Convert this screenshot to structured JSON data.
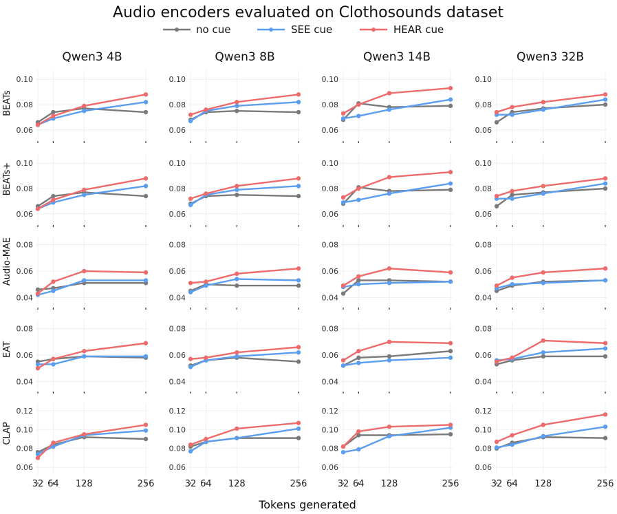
{
  "chart_data": {
    "type": "line",
    "title": "Audio encoders evaluated on Clothosounds dataset",
    "xlabel": "Tokens generated",
    "x": [
      32,
      64,
      128,
      256
    ],
    "x_tick_labels": [
      "32",
      "64",
      "128",
      "256"
    ],
    "columns": [
      "Qwen3 4B",
      "Qwen3 8B",
      "Qwen3 14B",
      "Qwen3 32B"
    ],
    "rows": [
      "BEATs",
      "BEATs+",
      "Audio-MAE",
      "EAT",
      "CLAP"
    ],
    "legend_position": "top-center",
    "series_colors": {
      "no cue": "#7a7a7a",
      "SEE cue": "#5b9ef0",
      "HEAR cue": "#ee6b6b"
    },
    "legend": [
      "no cue",
      "SEE cue",
      "HEAR cue"
    ],
    "panels": [
      {
        "row": "BEATs",
        "col": "Qwen3 4B",
        "ylim": [
          0.055,
          0.105
        ],
        "yticks": [
          0.06,
          0.08,
          0.1
        ],
        "ytick_labels": [
          "0.06",
          "0.08",
          "0.10"
        ],
        "series": [
          {
            "name": "no cue",
            "values": [
              0.066,
              0.074,
              0.077,
              0.074
            ]
          },
          {
            "name": "SEE cue",
            "values": [
              0.064,
              0.069,
              0.075,
              0.082
            ]
          },
          {
            "name": "HEAR cue",
            "values": [
              0.064,
              0.071,
              0.079,
              0.088
            ]
          }
        ]
      },
      {
        "row": "BEATs",
        "col": "Qwen3 8B",
        "ylim": [
          0.055,
          0.105
        ],
        "yticks": [
          0.06,
          0.08,
          0.1
        ],
        "ytick_labels": [
          "0.06",
          "0.08",
          "0.10"
        ],
        "series": [
          {
            "name": "no cue",
            "values": [
              0.068,
              0.074,
              0.075,
              0.074
            ]
          },
          {
            "name": "SEE cue",
            "values": [
              0.067,
              0.075,
              0.079,
              0.082
            ]
          },
          {
            "name": "HEAR cue",
            "values": [
              0.072,
              0.076,
              0.082,
              0.088
            ]
          }
        ]
      },
      {
        "row": "BEATs",
        "col": "Qwen3 14B",
        "ylim": [
          0.055,
          0.105
        ],
        "yticks": [
          0.06,
          0.08,
          0.1
        ],
        "ytick_labels": [
          "0.06",
          "0.08",
          "0.10"
        ],
        "series": [
          {
            "name": "no cue",
            "values": [
              0.068,
              0.081,
              0.078,
              0.079
            ]
          },
          {
            "name": "SEE cue",
            "values": [
              0.069,
              0.071,
              0.076,
              0.084
            ]
          },
          {
            "name": "HEAR cue",
            "values": [
              0.073,
              0.08,
              0.089,
              0.093
            ]
          }
        ]
      },
      {
        "row": "BEATs",
        "col": "Qwen3 32B",
        "ylim": [
          0.055,
          0.105
        ],
        "yticks": [
          0.06,
          0.08,
          0.1
        ],
        "ytick_labels": [
          "0.06",
          "0.08",
          "0.10"
        ],
        "series": [
          {
            "name": "no cue",
            "values": [
              0.066,
              0.074,
              0.077,
              0.08
            ]
          },
          {
            "name": "SEE cue",
            "values": [
              0.072,
              0.072,
              0.076,
              0.084
            ]
          },
          {
            "name": "HEAR cue",
            "values": [
              0.074,
              0.078,
              0.082,
              0.088
            ]
          }
        ]
      },
      {
        "row": "BEATs+",
        "col": "Qwen3 4B",
        "ylim": [
          0.055,
          0.105
        ],
        "yticks": [
          0.06,
          0.08,
          0.1
        ],
        "ytick_labels": [
          "0.06",
          "0.08",
          "0.10"
        ],
        "series": [
          {
            "name": "no cue",
            "values": [
              0.066,
              0.074,
              0.077,
              0.074
            ]
          },
          {
            "name": "SEE cue",
            "values": [
              0.064,
              0.069,
              0.075,
              0.082
            ]
          },
          {
            "name": "HEAR cue",
            "values": [
              0.064,
              0.071,
              0.079,
              0.088
            ]
          }
        ]
      },
      {
        "row": "BEATs+",
        "col": "Qwen3 8B",
        "ylim": [
          0.055,
          0.105
        ],
        "yticks": [
          0.06,
          0.08,
          0.1
        ],
        "ytick_labels": [
          "0.06",
          "0.08",
          "0.10"
        ],
        "series": [
          {
            "name": "no cue",
            "values": [
              0.068,
              0.074,
              0.075,
              0.074
            ]
          },
          {
            "name": "SEE cue",
            "values": [
              0.067,
              0.075,
              0.079,
              0.082
            ]
          },
          {
            "name": "HEAR cue",
            "values": [
              0.072,
              0.076,
              0.082,
              0.088
            ]
          }
        ]
      },
      {
        "row": "BEATs+",
        "col": "Qwen3 14B",
        "ylim": [
          0.055,
          0.105
        ],
        "yticks": [
          0.06,
          0.08,
          0.1
        ],
        "ytick_labels": [
          "0.06",
          "0.08",
          "0.10"
        ],
        "series": [
          {
            "name": "no cue",
            "values": [
              0.068,
              0.081,
              0.078,
              0.079
            ]
          },
          {
            "name": "SEE cue",
            "values": [
              0.069,
              0.071,
              0.076,
              0.084
            ]
          },
          {
            "name": "HEAR cue",
            "values": [
              0.073,
              0.08,
              0.089,
              0.093
            ]
          }
        ]
      },
      {
        "row": "BEATs+",
        "col": "Qwen3 32B",
        "ylim": [
          0.055,
          0.105
        ],
        "yticks": [
          0.06,
          0.08,
          0.1
        ],
        "ytick_labels": [
          "0.06",
          "0.08",
          "0.10"
        ],
        "series": [
          {
            "name": "no cue",
            "values": [
              0.066,
              0.075,
              0.077,
              0.08
            ]
          },
          {
            "name": "SEE cue",
            "values": [
              0.072,
              0.072,
              0.076,
              0.084
            ]
          },
          {
            "name": "HEAR cue",
            "values": [
              0.074,
              0.078,
              0.082,
              0.088
            ]
          }
        ]
      },
      {
        "row": "Audio-MAE",
        "col": "Qwen3 4B",
        "ylim": [
          0.036,
          0.084
        ],
        "yticks": [
          0.04,
          0.06,
          0.08
        ],
        "ytick_labels": [
          "0.04",
          "0.06",
          "0.08"
        ],
        "series": [
          {
            "name": "no cue",
            "values": [
              0.046,
              0.047,
              0.051,
              0.051
            ]
          },
          {
            "name": "SEE cue",
            "values": [
              0.042,
              0.045,
              0.053,
              0.053
            ]
          },
          {
            "name": "HEAR cue",
            "values": [
              0.043,
              0.052,
              0.06,
              0.059
            ]
          }
        ]
      },
      {
        "row": "Audio-MAE",
        "col": "Qwen3 8B",
        "ylim": [
          0.036,
          0.084
        ],
        "yticks": [
          0.04,
          0.06,
          0.08
        ],
        "ytick_labels": [
          "0.04",
          "0.06",
          "0.08"
        ],
        "series": [
          {
            "name": "no cue",
            "values": [
              0.045,
              0.05,
              0.049,
              0.049
            ]
          },
          {
            "name": "SEE cue",
            "values": [
              0.044,
              0.049,
              0.054,
              0.053
            ]
          },
          {
            "name": "HEAR cue",
            "values": [
              0.051,
              0.052,
              0.058,
              0.062
            ]
          }
        ]
      },
      {
        "row": "Audio-MAE",
        "col": "Qwen3 14B",
        "ylim": [
          0.036,
          0.084
        ],
        "yticks": [
          0.04,
          0.06,
          0.08
        ],
        "ytick_labels": [
          "0.04",
          "0.06",
          "0.08"
        ],
        "series": [
          {
            "name": "no cue",
            "values": [
              0.043,
              0.053,
              0.053,
              0.052
            ]
          },
          {
            "name": "SEE cue",
            "values": [
              0.048,
              0.05,
              0.051,
              0.052
            ]
          },
          {
            "name": "HEAR cue",
            "values": [
              0.049,
              0.056,
              0.062,
              0.059
            ]
          }
        ]
      },
      {
        "row": "Audio-MAE",
        "col": "Qwen3 32B",
        "ylim": [
          0.036,
          0.084
        ],
        "yticks": [
          0.04,
          0.06,
          0.08
        ],
        "ytick_labels": [
          "0.04",
          "0.06",
          "0.08"
        ],
        "series": [
          {
            "name": "no cue",
            "values": [
              0.045,
              0.049,
              0.052,
              0.053
            ]
          },
          {
            "name": "SEE cue",
            "values": [
              0.047,
              0.05,
              0.051,
              0.053
            ]
          },
          {
            "name": "HEAR cue",
            "values": [
              0.049,
              0.055,
              0.059,
              0.062
            ]
          }
        ]
      },
      {
        "row": "EAT",
        "col": "Qwen3 4B",
        "ylim": [
          0.036,
          0.084
        ],
        "yticks": [
          0.04,
          0.06,
          0.08
        ],
        "ytick_labels": [
          "0.04",
          "0.06",
          "0.08"
        ],
        "series": [
          {
            "name": "no cue",
            "values": [
              0.055,
              0.057,
              0.059,
              0.058
            ]
          },
          {
            "name": "SEE cue",
            "values": [
              0.053,
              0.053,
              0.059,
              0.059
            ]
          },
          {
            "name": "HEAR cue",
            "values": [
              0.05,
              0.057,
              0.063,
              0.069
            ]
          }
        ]
      },
      {
        "row": "EAT",
        "col": "Qwen3 8B",
        "ylim": [
          0.036,
          0.084
        ],
        "yticks": [
          0.04,
          0.06,
          0.08
        ],
        "ytick_labels": [
          "0.04",
          "0.06",
          "0.08"
        ],
        "series": [
          {
            "name": "no cue",
            "values": [
              0.052,
              0.056,
              0.058,
              0.055
            ]
          },
          {
            "name": "SEE cue",
            "values": [
              0.051,
              0.056,
              0.059,
              0.062
            ]
          },
          {
            "name": "HEAR cue",
            "values": [
              0.057,
              0.058,
              0.062,
              0.066
            ]
          }
        ]
      },
      {
        "row": "EAT",
        "col": "Qwen3 14B",
        "ylim": [
          0.036,
          0.084
        ],
        "yticks": [
          0.04,
          0.06,
          0.08
        ],
        "ytick_labels": [
          "0.04",
          "0.06",
          "0.08"
        ],
        "series": [
          {
            "name": "no cue",
            "values": [
              0.052,
              0.058,
              0.059,
              0.063
            ]
          },
          {
            "name": "SEE cue",
            "values": [
              0.052,
              0.054,
              0.056,
              0.058
            ]
          },
          {
            "name": "HEAR cue",
            "values": [
              0.056,
              0.063,
              0.07,
              0.069
            ]
          }
        ]
      },
      {
        "row": "EAT",
        "col": "Qwen3 32B",
        "ylim": [
          0.036,
          0.084
        ],
        "yticks": [
          0.04,
          0.06,
          0.08
        ],
        "ytick_labels": [
          "0.04",
          "0.06",
          "0.08"
        ],
        "series": [
          {
            "name": "no cue",
            "values": [
              0.053,
              0.056,
              0.059,
              0.059
            ]
          },
          {
            "name": "SEE cue",
            "values": [
              0.056,
              0.057,
              0.062,
              0.065
            ]
          },
          {
            "name": "HEAR cue",
            "values": [
              0.055,
              0.058,
              0.071,
              0.069
            ]
          }
        ]
      },
      {
        "row": "CLAP",
        "col": "Qwen3 4B",
        "ylim": [
          0.055,
          0.125
        ],
        "yticks": [
          0.06,
          0.08,
          0.1,
          0.12
        ],
        "ytick_labels": [
          "0.06",
          "0.08",
          "0.10",
          "0.12"
        ],
        "series": [
          {
            "name": "no cue",
            "values": [
              0.076,
              0.084,
              0.092,
              0.09
            ]
          },
          {
            "name": "SEE cue",
            "values": [
              0.074,
              0.082,
              0.094,
              0.099
            ]
          },
          {
            "name": "HEAR cue",
            "values": [
              0.07,
              0.086,
              0.095,
              0.105
            ]
          }
        ]
      },
      {
        "row": "CLAP",
        "col": "Qwen3 8B",
        "ylim": [
          0.055,
          0.125
        ],
        "yticks": [
          0.06,
          0.08,
          0.1,
          0.12
        ],
        "ytick_labels": [
          "0.06",
          "0.08",
          "0.10",
          "0.12"
        ],
        "series": [
          {
            "name": "no cue",
            "values": [
              0.082,
              0.087,
              0.091,
              0.091
            ]
          },
          {
            "name": "SEE cue",
            "values": [
              0.077,
              0.087,
              0.091,
              0.101
            ]
          },
          {
            "name": "HEAR cue",
            "values": [
              0.084,
              0.09,
              0.101,
              0.107
            ]
          }
        ]
      },
      {
        "row": "CLAP",
        "col": "Qwen3 14B",
        "ylim": [
          0.055,
          0.125
        ],
        "yticks": [
          0.06,
          0.08,
          0.1,
          0.12
        ],
        "ytick_labels": [
          "0.06",
          "0.08",
          "0.10",
          "0.12"
        ],
        "series": [
          {
            "name": "no cue",
            "values": [
              0.082,
              0.094,
              0.094,
              0.095
            ]
          },
          {
            "name": "SEE cue",
            "values": [
              0.076,
              0.079,
              0.093,
              0.102
            ]
          },
          {
            "name": "HEAR cue",
            "values": [
              0.082,
              0.098,
              0.103,
              0.105
            ]
          }
        ]
      },
      {
        "row": "CLAP",
        "col": "Qwen3 32B",
        "ylim": [
          0.055,
          0.125
        ],
        "yticks": [
          0.06,
          0.08,
          0.1,
          0.12
        ],
        "ytick_labels": [
          "0.06",
          "0.08",
          "0.10",
          "0.12"
        ],
        "series": [
          {
            "name": "no cue",
            "values": [
              0.08,
              0.086,
              0.092,
              0.091
            ]
          },
          {
            "name": "SEE cue",
            "values": [
              0.081,
              0.084,
              0.093,
              0.103
            ]
          },
          {
            "name": "HEAR cue",
            "values": [
              0.087,
              0.094,
              0.105,
              0.116
            ]
          }
        ]
      }
    ]
  }
}
